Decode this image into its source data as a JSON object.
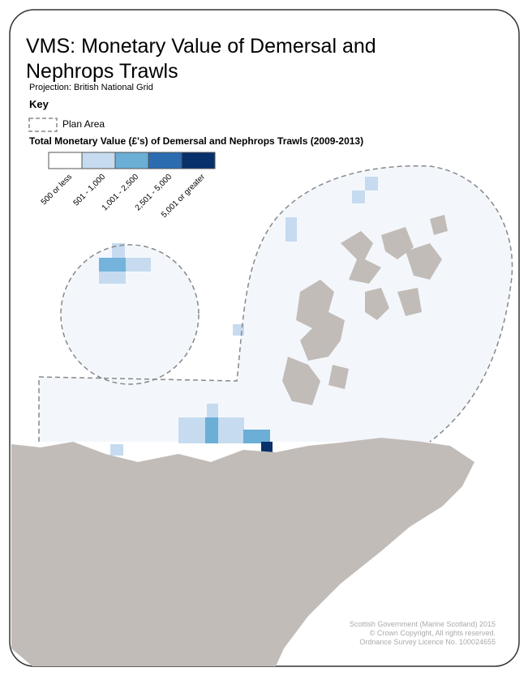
{
  "title": "VMS: Monetary Value of Demersal and Nephrops Trawls",
  "projection": "Projection: British National Grid",
  "key": {
    "title": "Key",
    "plan_area": "Plan Area",
    "legend_title": "Total Monetary Value (£'s) of Demersal and Nephrops Trawls (2009-2013)",
    "classes": [
      {
        "label": "500 or less",
        "color": "#ffffff"
      },
      {
        "label": "501 - 1,000",
        "color": "#c6dbef"
      },
      {
        "label": "1,001 - 2,500",
        "color": "#6baed6"
      },
      {
        "label": "2,501 - 5,000",
        "color": "#2b6cb0"
      },
      {
        "label": "5,001 or greater",
        "color": "#08306b"
      }
    ]
  },
  "credits": [
    "Scottish Government (Marine Scotland) 2015",
    "© Crown Copyright, All rights reserved.",
    "Ordnance Survey Licence No. 100024655"
  ]
}
